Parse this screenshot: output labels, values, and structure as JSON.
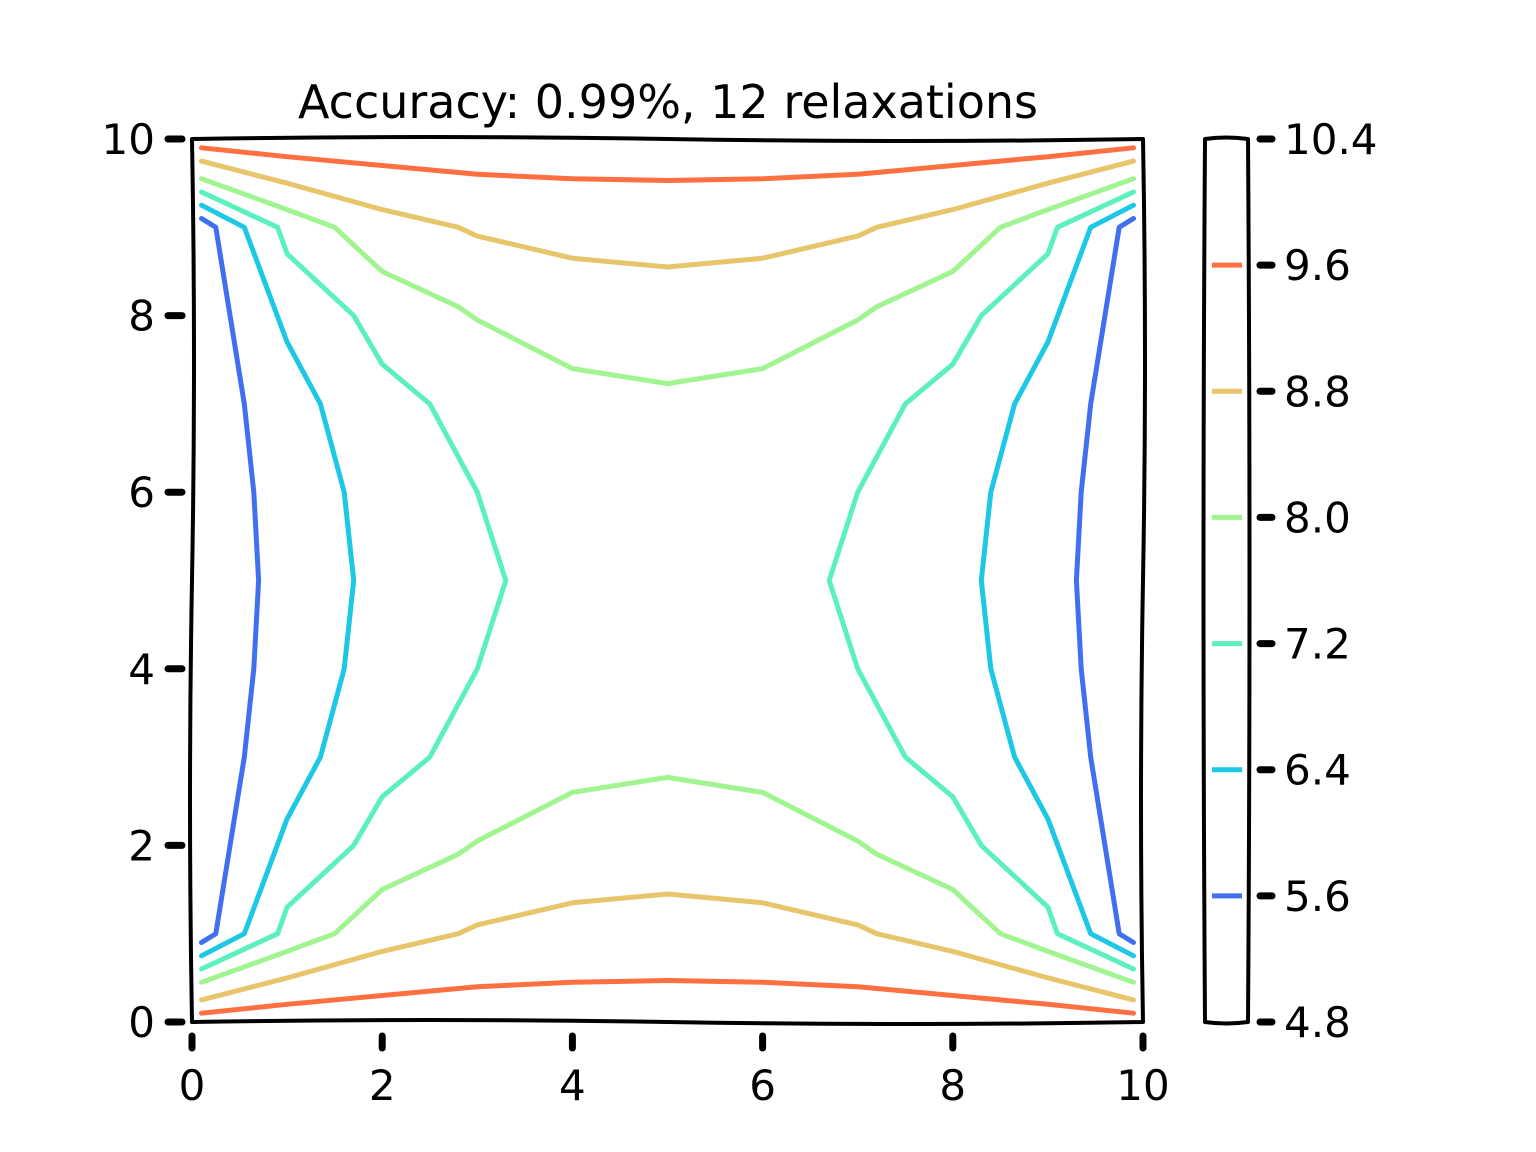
{
  "chart_data": {
    "type": "contour",
    "title": "Accuracy: 0.99%, 12 relaxations",
    "xlim": [
      0,
      10
    ],
    "ylim": [
      0,
      10
    ],
    "x_ticks": [
      "0",
      "2",
      "4",
      "6",
      "8",
      "10"
    ],
    "y_ticks": [
      "0",
      "2",
      "4",
      "6",
      "8",
      "10"
    ],
    "colorbar": {
      "range": [
        4.8,
        10.4
      ],
      "ticks": [
        "10.4",
        "9.6",
        "8.8",
        "8.0",
        "7.2",
        "6.4",
        "5.6",
        "4.8"
      ]
    },
    "levels": [
      {
        "level": 9.6,
        "color": "#ff7040",
        "paths": [
          [
            [
              0.1,
              9.9
            ],
            [
              1,
              9.8
            ],
            [
              2,
              9.7
            ],
            [
              3,
              9.6
            ],
            [
              4,
              9.55
            ],
            [
              5,
              9.53
            ],
            [
              6,
              9.55
            ],
            [
              7,
              9.6
            ],
            [
              8,
              9.7
            ],
            [
              9,
              9.8
            ],
            [
              9.9,
              9.9
            ]
          ],
          [
            [
              0.1,
              0.1
            ],
            [
              1,
              0.2
            ],
            [
              2,
              0.3
            ],
            [
              3,
              0.4
            ],
            [
              4,
              0.45
            ],
            [
              5,
              0.47
            ],
            [
              6,
              0.45
            ],
            [
              7,
              0.4
            ],
            [
              8,
              0.3
            ],
            [
              9,
              0.2
            ],
            [
              9.9,
              0.1
            ]
          ]
        ]
      },
      {
        "level": 8.8,
        "color": "#e8c46a",
        "paths": [
          [
            [
              0.1,
              9.75
            ],
            [
              1,
              9.5
            ],
            [
              2,
              9.2
            ],
            [
              2.8,
              9.0
            ],
            [
              3,
              8.9
            ],
            [
              4,
              8.65
            ],
            [
              5,
              8.55
            ],
            [
              6,
              8.65
            ],
            [
              7,
              8.9
            ],
            [
              7.2,
              9.0
            ],
            [
              8,
              9.2
            ],
            [
              9,
              9.5
            ],
            [
              9.9,
              9.75
            ]
          ],
          [
            [
              0.1,
              0.25
            ],
            [
              1,
              0.5
            ],
            [
              2,
              0.8
            ],
            [
              2.8,
              1.0
            ],
            [
              3,
              1.1
            ],
            [
              4,
              1.35
            ],
            [
              5,
              1.45
            ],
            [
              6,
              1.35
            ],
            [
              7,
              1.1
            ],
            [
              7.2,
              1.0
            ],
            [
              8,
              0.8
            ],
            [
              9,
              0.5
            ],
            [
              9.9,
              0.25
            ]
          ]
        ]
      },
      {
        "level": 8.0,
        "color": "#a0f590",
        "paths": [
          [
            [
              0.1,
              9.55
            ],
            [
              1,
              9.2
            ],
            [
              1.5,
              9.0
            ],
            [
              2,
              8.5
            ],
            [
              2.8,
              8.1
            ],
            [
              3,
              7.95
            ],
            [
              4,
              7.4
            ],
            [
              5,
              7.23
            ],
            [
              6,
              7.4
            ],
            [
              7,
              7.95
            ],
            [
              7.2,
              8.1
            ],
            [
              8,
              8.5
            ],
            [
              8.5,
              9.0
            ],
            [
              9,
              9.2
            ],
            [
              9.9,
              9.55
            ]
          ],
          [
            [
              0.1,
              0.45
            ],
            [
              1,
              0.8
            ],
            [
              1.5,
              1.0
            ],
            [
              2,
              1.5
            ],
            [
              2.8,
              1.9
            ],
            [
              3,
              2.05
            ],
            [
              4,
              2.6
            ],
            [
              5,
              2.77
            ],
            [
              6,
              2.6
            ],
            [
              7,
              2.05
            ],
            [
              7.2,
              1.9
            ],
            [
              8,
              1.5
            ],
            [
              8.5,
              1.0
            ],
            [
              9,
              0.8
            ],
            [
              9.9,
              0.45
            ]
          ]
        ]
      },
      {
        "level": 7.2,
        "color": "#5cf0c0",
        "paths": [
          [
            [
              0.1,
              9.4
            ],
            [
              0.9,
              9.0
            ],
            [
              1,
              8.7
            ],
            [
              1.7,
              8.0
            ],
            [
              2,
              7.45
            ],
            [
              2.5,
              7.0
            ],
            [
              3,
              6.0
            ],
            [
              3.3,
              5.0
            ],
            [
              3,
              4.0
            ],
            [
              2.5,
              3.0
            ],
            [
              2,
              2.55
            ],
            [
              1.7,
              2.0
            ],
            [
              1,
              1.3
            ],
            [
              0.9,
              1.0
            ],
            [
              0.1,
              0.6
            ]
          ],
          [
            [
              9.9,
              9.4
            ],
            [
              9.1,
              9.0
            ],
            [
              9,
              8.7
            ],
            [
              8.3,
              8.0
            ],
            [
              8,
              7.45
            ],
            [
              7.5,
              7.0
            ],
            [
              7,
              6.0
            ],
            [
              6.7,
              5.0
            ],
            [
              7,
              4.0
            ],
            [
              7.5,
              3.0
            ],
            [
              8,
              2.55
            ],
            [
              8.3,
              2.0
            ],
            [
              9,
              1.3
            ],
            [
              9.1,
              1.0
            ],
            [
              9.9,
              0.6
            ]
          ]
        ]
      },
      {
        "level": 6.4,
        "color": "#1cc8e4",
        "paths": [
          [
            [
              0.1,
              9.25
            ],
            [
              0.55,
              9.0
            ],
            [
              1,
              7.7
            ],
            [
              1.35,
              7.0
            ],
            [
              1.6,
              6.0
            ],
            [
              1.7,
              5.0
            ],
            [
              1.6,
              4.0
            ],
            [
              1.35,
              3.0
            ],
            [
              1,
              2.3
            ],
            [
              0.55,
              1.0
            ],
            [
              0.1,
              0.75
            ]
          ],
          [
            [
              9.9,
              9.25
            ],
            [
              9.45,
              9.0
            ],
            [
              9,
              7.7
            ],
            [
              8.65,
              7.0
            ],
            [
              8.4,
              6.0
            ],
            [
              8.3,
              5.0
            ],
            [
              8.4,
              4.0
            ],
            [
              8.65,
              3.0
            ],
            [
              9,
              2.3
            ],
            [
              9.45,
              1.0
            ],
            [
              9.9,
              0.75
            ]
          ]
        ]
      },
      {
        "level": 5.6,
        "color": "#4070f0",
        "paths": [
          [
            [
              0.1,
              9.1
            ],
            [
              0.25,
              9.0
            ],
            [
              0.55,
              7.0
            ],
            [
              0.65,
              6.0
            ],
            [
              0.7,
              5.0
            ],
            [
              0.65,
              4.0
            ],
            [
              0.55,
              3.0
            ],
            [
              0.25,
              1.0
            ],
            [
              0.1,
              0.9
            ]
          ],
          [
            [
              9.9,
              9.1
            ],
            [
              9.75,
              9.0
            ],
            [
              9.45,
              7.0
            ],
            [
              9.35,
              6.0
            ],
            [
              9.3,
              5.0
            ],
            [
              9.35,
              4.0
            ],
            [
              9.45,
              3.0
            ],
            [
              9.75,
              1.0
            ],
            [
              9.9,
              0.9
            ]
          ]
        ]
      }
    ]
  }
}
